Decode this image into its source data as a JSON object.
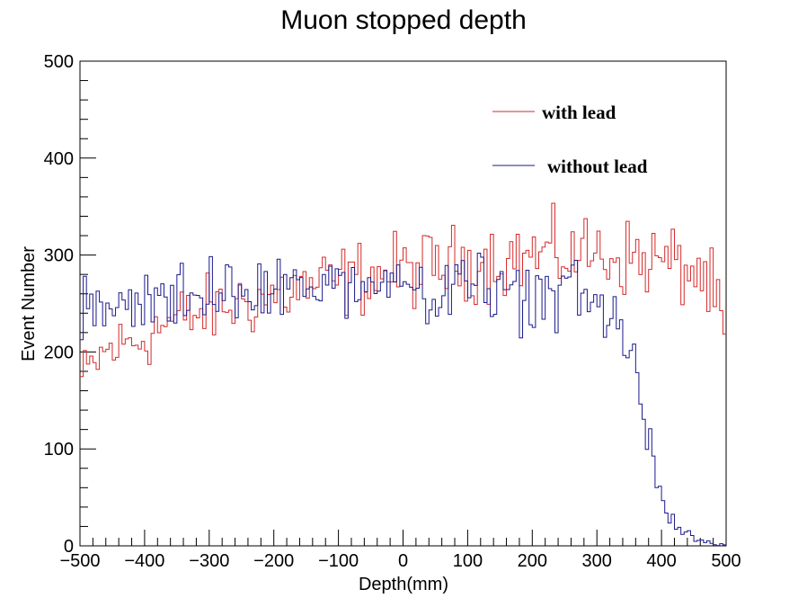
{
  "chart_data": {
    "type": "line",
    "title": "Muon stopped depth",
    "xlabel": "Depth(mm)",
    "ylabel": "Event Number",
    "xlim": [
      -500,
      500
    ],
    "ylim": [
      0,
      500
    ],
    "xticks": [
      -500,
      -400,
      -300,
      -200,
      -100,
      0,
      100,
      200,
      300,
      400,
      500
    ],
    "yticks": [
      0,
      100,
      200,
      300,
      400,
      500
    ],
    "xtick_labels": [
      "−500",
      "−400",
      "−300",
      "−200",
      "−100",
      "0",
      "100",
      "200",
      "300",
      "400",
      "500"
    ],
    "ytick_labels": [
      "0",
      "100",
      "200",
      "300",
      "400",
      "500"
    ],
    "histogram": true,
    "bin_width_mm": 5,
    "grid": false,
    "legend_position": "top-right",
    "series": [
      {
        "name": "with lead",
        "color": "#d42a2a",
        "x": [
          -500,
          -480,
          -460,
          -440,
          -420,
          -400,
          -380,
          -360,
          -340,
          -320,
          -300,
          -280,
          -260,
          -240,
          -220,
          -200,
          -180,
          -160,
          -140,
          -120,
          -100,
          -80,
          -60,
          -40,
          -20,
          0,
          20,
          40,
          60,
          80,
          100,
          120,
          140,
          160,
          180,
          200,
          220,
          240,
          260,
          280,
          300,
          320,
          340,
          360,
          380,
          400,
          420,
          440,
          460,
          480,
          500
        ],
        "values": [
          170,
          185,
          200,
          205,
          210,
          215,
          225,
          230,
          235,
          238,
          242,
          245,
          250,
          252,
          255,
          258,
          262,
          265,
          268,
          270,
          272,
          275,
          278,
          280,
          282,
          283,
          285,
          287,
          288,
          290,
          292,
          294,
          295,
          296,
          298,
          299,
          300,
          300,
          301,
          302,
          302,
          300,
          298,
          296,
          295,
          294,
          290,
          285,
          280,
          260,
          210
        ]
      },
      {
        "name": "without lead",
        "color": "#1a1a8c",
        "x": [
          -500,
          -480,
          -460,
          -440,
          -420,
          -400,
          -380,
          -360,
          -340,
          -320,
          -300,
          -280,
          -260,
          -240,
          -220,
          -200,
          -180,
          -160,
          -140,
          -120,
          -100,
          -80,
          -60,
          -40,
          -20,
          0,
          20,
          40,
          60,
          80,
          100,
          120,
          140,
          160,
          180,
          200,
          220,
          240,
          260,
          280,
          300,
          320,
          330,
          340,
          350,
          360,
          370,
          380,
          390,
          400,
          410,
          420,
          430,
          440,
          450,
          460,
          470,
          480,
          490,
          500
        ],
        "values": [
          235,
          238,
          242,
          245,
          248,
          250,
          252,
          255,
          258,
          260,
          262,
          263,
          264,
          265,
          266,
          267,
          268,
          268,
          269,
          269,
          270,
          270,
          270,
          270,
          270,
          270,
          270,
          270,
          269,
          268,
          267,
          266,
          265,
          263,
          262,
          260,
          258,
          256,
          254,
          252,
          250,
          242,
          232,
          215,
          195,
          170,
          140,
          110,
          80,
          55,
          38,
          25,
          18,
          12,
          8,
          5,
          3,
          2,
          1,
          0
        ]
      }
    ]
  }
}
